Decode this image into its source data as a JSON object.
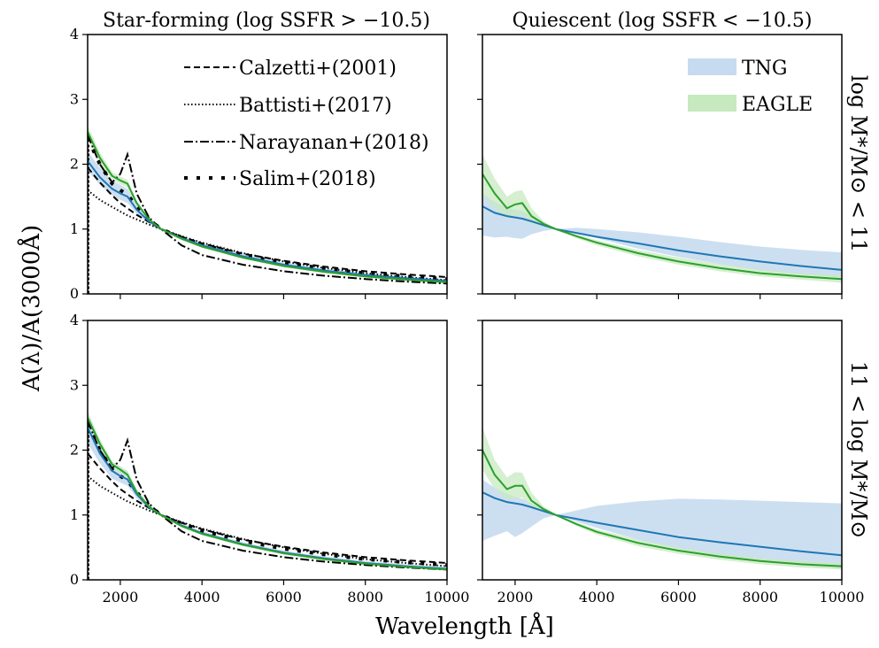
{
  "figure": {
    "xlabel": "Wavelength [Å]",
    "ylabel": "A(λ)/A(3000Å)",
    "col_titles": [
      "Star-forming (log SSFR > −10.5)",
      "Quiescent (log SSFR < −10.5)"
    ],
    "row_labels": [
      "log M*/M⊙ < 11",
      "11 < log M*/M⊙"
    ],
    "colors": {
      "tng": "#1f77b4",
      "tng_band": "#c6dbef",
      "eagle": "#2ca02c",
      "eagle_band": "#c7e9c0",
      "ref": "#000000"
    }
  },
  "legend_left": [
    {
      "label": "Calzetti+(2001)",
      "style": "dashed"
    },
    {
      "label": "Battisti+(2017)",
      "style": "dotted"
    },
    {
      "label": "Narayanan+(2018)",
      "style": "dashdot"
    },
    {
      "label": "Salim+(2018)",
      "style": "sparse-dotted"
    }
  ],
  "legend_right": [
    {
      "label": "TNG",
      "color": "#c6dbef"
    },
    {
      "label": "EAGLE",
      "color": "#c7e9c0"
    }
  ],
  "chart_data": {
    "type": "line",
    "xlim": [
      1200,
      10000
    ],
    "ylim": [
      0,
      4
    ],
    "xticks": [
      2000,
      4000,
      6000,
      8000,
      10000
    ],
    "yticks": [
      0,
      1,
      2,
      3,
      4
    ],
    "x": [
      1200,
      1500,
      1800,
      2000,
      2175,
      2400,
      2700,
      3000,
      3500,
      4000,
      5000,
      6000,
      7000,
      8000,
      9000,
      10000
    ],
    "references": {
      "Calzetti+(2001)": [
        1.95,
        1.72,
        1.52,
        1.4,
        1.32,
        1.22,
        1.11,
        1.0,
        0.88,
        0.78,
        0.62,
        0.51,
        0.42,
        0.35,
        0.3,
        0.26
      ],
      "Battisti+(2017)": [
        1.6,
        1.45,
        1.34,
        1.27,
        1.21,
        1.15,
        1.07,
        1.0,
        0.89,
        0.79,
        0.63,
        0.5,
        0.4,
        0.32,
        0.26,
        0.21
      ],
      "Narayanan+(2018)": [
        2.45,
        2.0,
        1.72,
        1.85,
        2.15,
        1.55,
        1.18,
        1.0,
        0.75,
        0.6,
        0.45,
        0.35,
        0.28,
        0.23,
        0.19,
        0.16
      ],
      "Salim+(2018)": [
        2.4,
        2.0,
        1.7,
        1.6,
        1.53,
        1.35,
        1.15,
        1.0,
        0.87,
        0.76,
        0.6,
        0.48,
        0.39,
        0.32,
        0.27,
        0.23
      ]
    },
    "panels": [
      {
        "row": 0,
        "col": 0,
        "show_refs": true,
        "tng": {
          "median": [
            2.05,
            1.8,
            1.62,
            1.55,
            1.5,
            1.3,
            1.12,
            1.0,
            0.86,
            0.75,
            0.58,
            0.45,
            0.36,
            0.29,
            0.24,
            0.2
          ],
          "low": [
            1.9,
            1.68,
            1.52,
            1.45,
            1.4,
            1.24,
            1.09,
            1.0,
            0.83,
            0.72,
            0.55,
            0.42,
            0.33,
            0.26,
            0.21,
            0.17
          ],
          "high": [
            2.2,
            1.95,
            1.75,
            1.68,
            1.62,
            1.4,
            1.16,
            1.0,
            0.89,
            0.78,
            0.61,
            0.48,
            0.39,
            0.32,
            0.27,
            0.23
          ]
        },
        "eagle": {
          "median": [
            2.5,
            2.1,
            1.82,
            1.75,
            1.7,
            1.4,
            1.15,
            1.0,
            0.85,
            0.73,
            0.56,
            0.43,
            0.34,
            0.27,
            0.22,
            0.18
          ],
          "low": [
            2.4,
            2.02,
            1.76,
            1.69,
            1.64,
            1.36,
            1.13,
            1.0,
            0.83,
            0.71,
            0.54,
            0.41,
            0.32,
            0.25,
            0.2,
            0.16
          ],
          "high": [
            2.6,
            2.18,
            1.88,
            1.81,
            1.76,
            1.44,
            1.17,
            1.0,
            0.87,
            0.75,
            0.58,
            0.45,
            0.36,
            0.29,
            0.24,
            0.2
          ]
        }
      },
      {
        "row": 0,
        "col": 1,
        "show_refs": false,
        "tng": {
          "median": [
            1.35,
            1.25,
            1.2,
            1.18,
            1.16,
            1.12,
            1.06,
            1.0,
            0.94,
            0.88,
            0.78,
            0.67,
            0.58,
            0.5,
            0.43,
            0.37
          ],
          "low": [
            0.9,
            0.87,
            0.88,
            0.86,
            0.85,
            0.92,
            0.97,
            1.0,
            0.93,
            0.86,
            0.7,
            0.57,
            0.46,
            0.36,
            0.3,
            0.25
          ],
          "high": [
            1.55,
            1.42,
            1.33,
            1.3,
            1.28,
            1.2,
            1.1,
            1.0,
            1.02,
            1.0,
            0.95,
            0.88,
            0.8,
            0.73,
            0.68,
            0.64
          ]
        },
        "eagle": {
          "median": [
            1.85,
            1.55,
            1.32,
            1.38,
            1.4,
            1.2,
            1.08,
            1.0,
            0.89,
            0.79,
            0.63,
            0.5,
            0.4,
            0.32,
            0.27,
            0.23
          ],
          "low": [
            1.55,
            1.32,
            1.16,
            1.2,
            1.22,
            1.08,
            1.03,
            1.0,
            0.86,
            0.75,
            0.58,
            0.45,
            0.35,
            0.27,
            0.22,
            0.17
          ],
          "high": [
            2.15,
            1.78,
            1.5,
            1.58,
            1.6,
            1.32,
            1.12,
            1.0,
            0.92,
            0.83,
            0.68,
            0.56,
            0.46,
            0.38,
            0.32,
            0.29
          ]
        }
      },
      {
        "row": 1,
        "col": 0,
        "show_refs": true,
        "tng": {
          "median": [
            2.35,
            1.95,
            1.68,
            1.6,
            1.55,
            1.32,
            1.12,
            1.0,
            0.84,
            0.72,
            0.55,
            0.42,
            0.33,
            0.26,
            0.21,
            0.17
          ],
          "low": [
            2.1,
            1.8,
            1.56,
            1.5,
            1.45,
            1.26,
            1.09,
            1.0,
            0.81,
            0.69,
            0.52,
            0.39,
            0.3,
            0.23,
            0.18,
            0.14
          ],
          "high": [
            2.6,
            2.15,
            1.82,
            1.74,
            1.68,
            1.4,
            1.16,
            1.0,
            0.87,
            0.75,
            0.58,
            0.45,
            0.36,
            0.29,
            0.24,
            0.2
          ]
        },
        "eagle": {
          "median": [
            2.5,
            2.1,
            1.78,
            1.7,
            1.62,
            1.35,
            1.13,
            1.0,
            0.83,
            0.71,
            0.54,
            0.41,
            0.32,
            0.25,
            0.2,
            0.16
          ],
          "low": [
            2.42,
            2.03,
            1.73,
            1.65,
            1.57,
            1.31,
            1.11,
            1.0,
            0.81,
            0.69,
            0.52,
            0.39,
            0.3,
            0.23,
            0.18,
            0.14
          ],
          "high": [
            2.58,
            2.17,
            1.83,
            1.75,
            1.67,
            1.39,
            1.15,
            1.0,
            0.85,
            0.73,
            0.56,
            0.43,
            0.34,
            0.27,
            0.22,
            0.18
          ]
        }
      },
      {
        "row": 1,
        "col": 1,
        "show_refs": false,
        "tng": {
          "median": [
            1.35,
            1.26,
            1.2,
            1.18,
            1.16,
            1.12,
            1.06,
            1.0,
            0.94,
            0.88,
            0.77,
            0.66,
            0.58,
            0.51,
            0.44,
            0.38
          ],
          "low": [
            0.6,
            0.68,
            0.75,
            0.66,
            0.72,
            0.82,
            0.95,
            1.0,
            0.9,
            0.8,
            0.62,
            0.48,
            0.37,
            0.28,
            0.22,
            0.17
          ],
          "high": [
            1.55,
            1.42,
            1.33,
            1.28,
            1.25,
            1.18,
            1.09,
            1.0,
            1.07,
            1.14,
            1.21,
            1.25,
            1.24,
            1.22,
            1.2,
            1.18
          ]
        },
        "eagle": {
          "median": [
            2.0,
            1.62,
            1.4,
            1.45,
            1.45,
            1.22,
            1.09,
            1.0,
            0.86,
            0.74,
            0.57,
            0.45,
            0.36,
            0.29,
            0.24,
            0.21
          ],
          "low": [
            1.7,
            1.4,
            1.23,
            1.26,
            1.27,
            1.11,
            1.04,
            1.0,
            0.83,
            0.7,
            0.52,
            0.4,
            0.31,
            0.24,
            0.19,
            0.16
          ],
          "high": [
            2.35,
            1.85,
            1.58,
            1.66,
            1.65,
            1.34,
            1.13,
            1.0,
            0.89,
            0.78,
            0.62,
            0.5,
            0.41,
            0.34,
            0.29,
            0.26
          ]
        }
      }
    ]
  }
}
